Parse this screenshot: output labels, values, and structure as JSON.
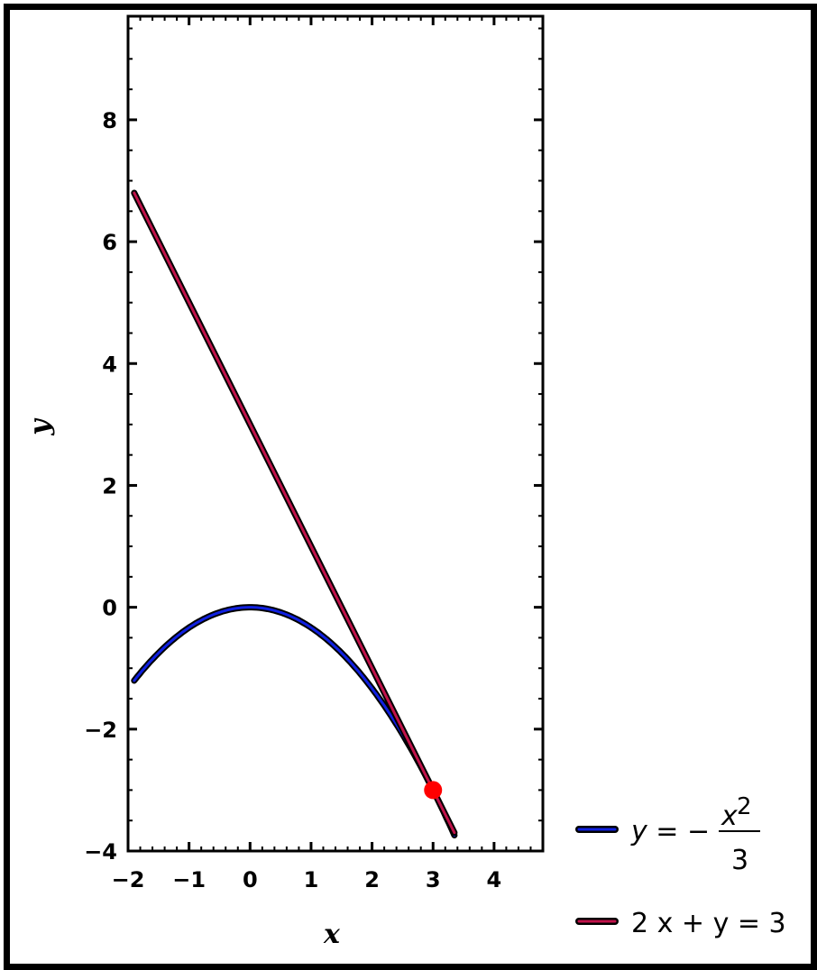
{
  "chart_data": {
    "type": "line",
    "xlabel": "x",
    "ylabel": "y",
    "xlim": [
      -2,
      4.8
    ],
    "ylim": [
      -4,
      9.7
    ],
    "xticks": [
      -2,
      -1,
      0,
      1,
      2,
      3,
      4
    ],
    "xtick_labels": [
      "−2",
      "−1",
      "0",
      "1",
      "2",
      "3",
      "4"
    ],
    "yticks": [
      -4,
      -2,
      0,
      2,
      4,
      6,
      8
    ],
    "ytick_labels": [
      "−4",
      "−2",
      "0",
      "2",
      "4",
      "6",
      "8"
    ],
    "grid": false,
    "legend_position": "right",
    "series": [
      {
        "name": "y = −x²/3",
        "color": "#1020e0",
        "x": [
          -1.9,
          -1.5,
          -1.0,
          -0.5,
          0.0,
          0.5,
          1.0,
          1.5,
          2.0,
          2.5,
          3.0,
          3.35
        ],
        "y": [
          -1.203,
          -0.75,
          -0.333,
          -0.083,
          0.0,
          -0.083,
          -0.333,
          -0.75,
          -1.333,
          -2.083,
          -3.0,
          -3.741
        ]
      },
      {
        "name": "2x + y = 3",
        "color": "#c0124a",
        "x": [
          -1.9,
          3.35
        ],
        "y": [
          6.8,
          -3.7
        ]
      }
    ],
    "points": [
      {
        "x": 3,
        "y": -3,
        "color": "#ff0000"
      }
    ]
  },
  "legend": {
    "curve": {
      "prefix": "y = −",
      "numerator": "x",
      "exponent": "2",
      "denominator": "3",
      "color": "#1020e0"
    },
    "line": {
      "text": "2 x + y = 3",
      "color": "#c0124a"
    }
  }
}
